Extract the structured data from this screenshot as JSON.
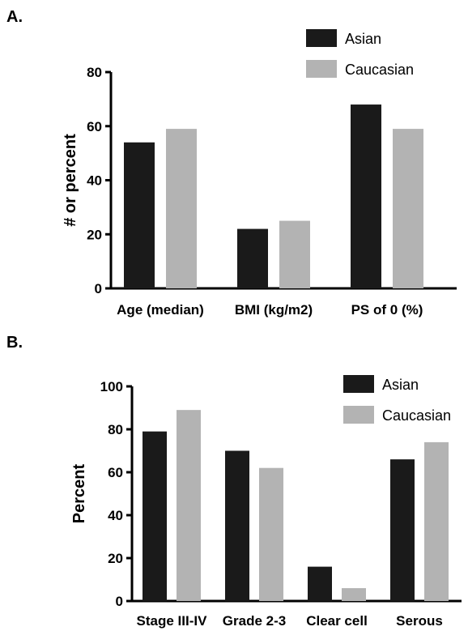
{
  "panels": {
    "a_label": "A.",
    "b_label": "B."
  },
  "colors": {
    "asian": "#1a1a1a",
    "caucasian": "#b3b3b3",
    "axis": "#000000"
  },
  "chart_data": [
    {
      "type": "bar",
      "categories": [
        "Age (median)",
        "BMI (kg/m2)",
        "PS of 0 (%)"
      ],
      "series": [
        {
          "name": "Asian",
          "values": [
            54,
            22,
            68
          ]
        },
        {
          "name": "Caucasian",
          "values": [
            59,
            25,
            59
          ]
        }
      ],
      "ylabel": "# or percent",
      "xlabel": "",
      "ylim": [
        0,
        80
      ],
      "yticks": [
        0,
        20,
        40,
        60,
        80
      ],
      "legend": "top-right",
      "grid": false
    },
    {
      "type": "bar",
      "categories": [
        "Stage III-IV",
        "Grade 2-3",
        "Clear cell",
        "Serous"
      ],
      "series": [
        {
          "name": "Asian",
          "values": [
            79,
            70,
            16,
            66
          ]
        },
        {
          "name": "Caucasian",
          "values": [
            89,
            62,
            6,
            74
          ]
        }
      ],
      "ylabel": "Percent",
      "xlabel": "",
      "ylim": [
        0,
        100
      ],
      "yticks": [
        0,
        20,
        40,
        60,
        80,
        100
      ],
      "legend": "top-right",
      "grid": false
    }
  ]
}
